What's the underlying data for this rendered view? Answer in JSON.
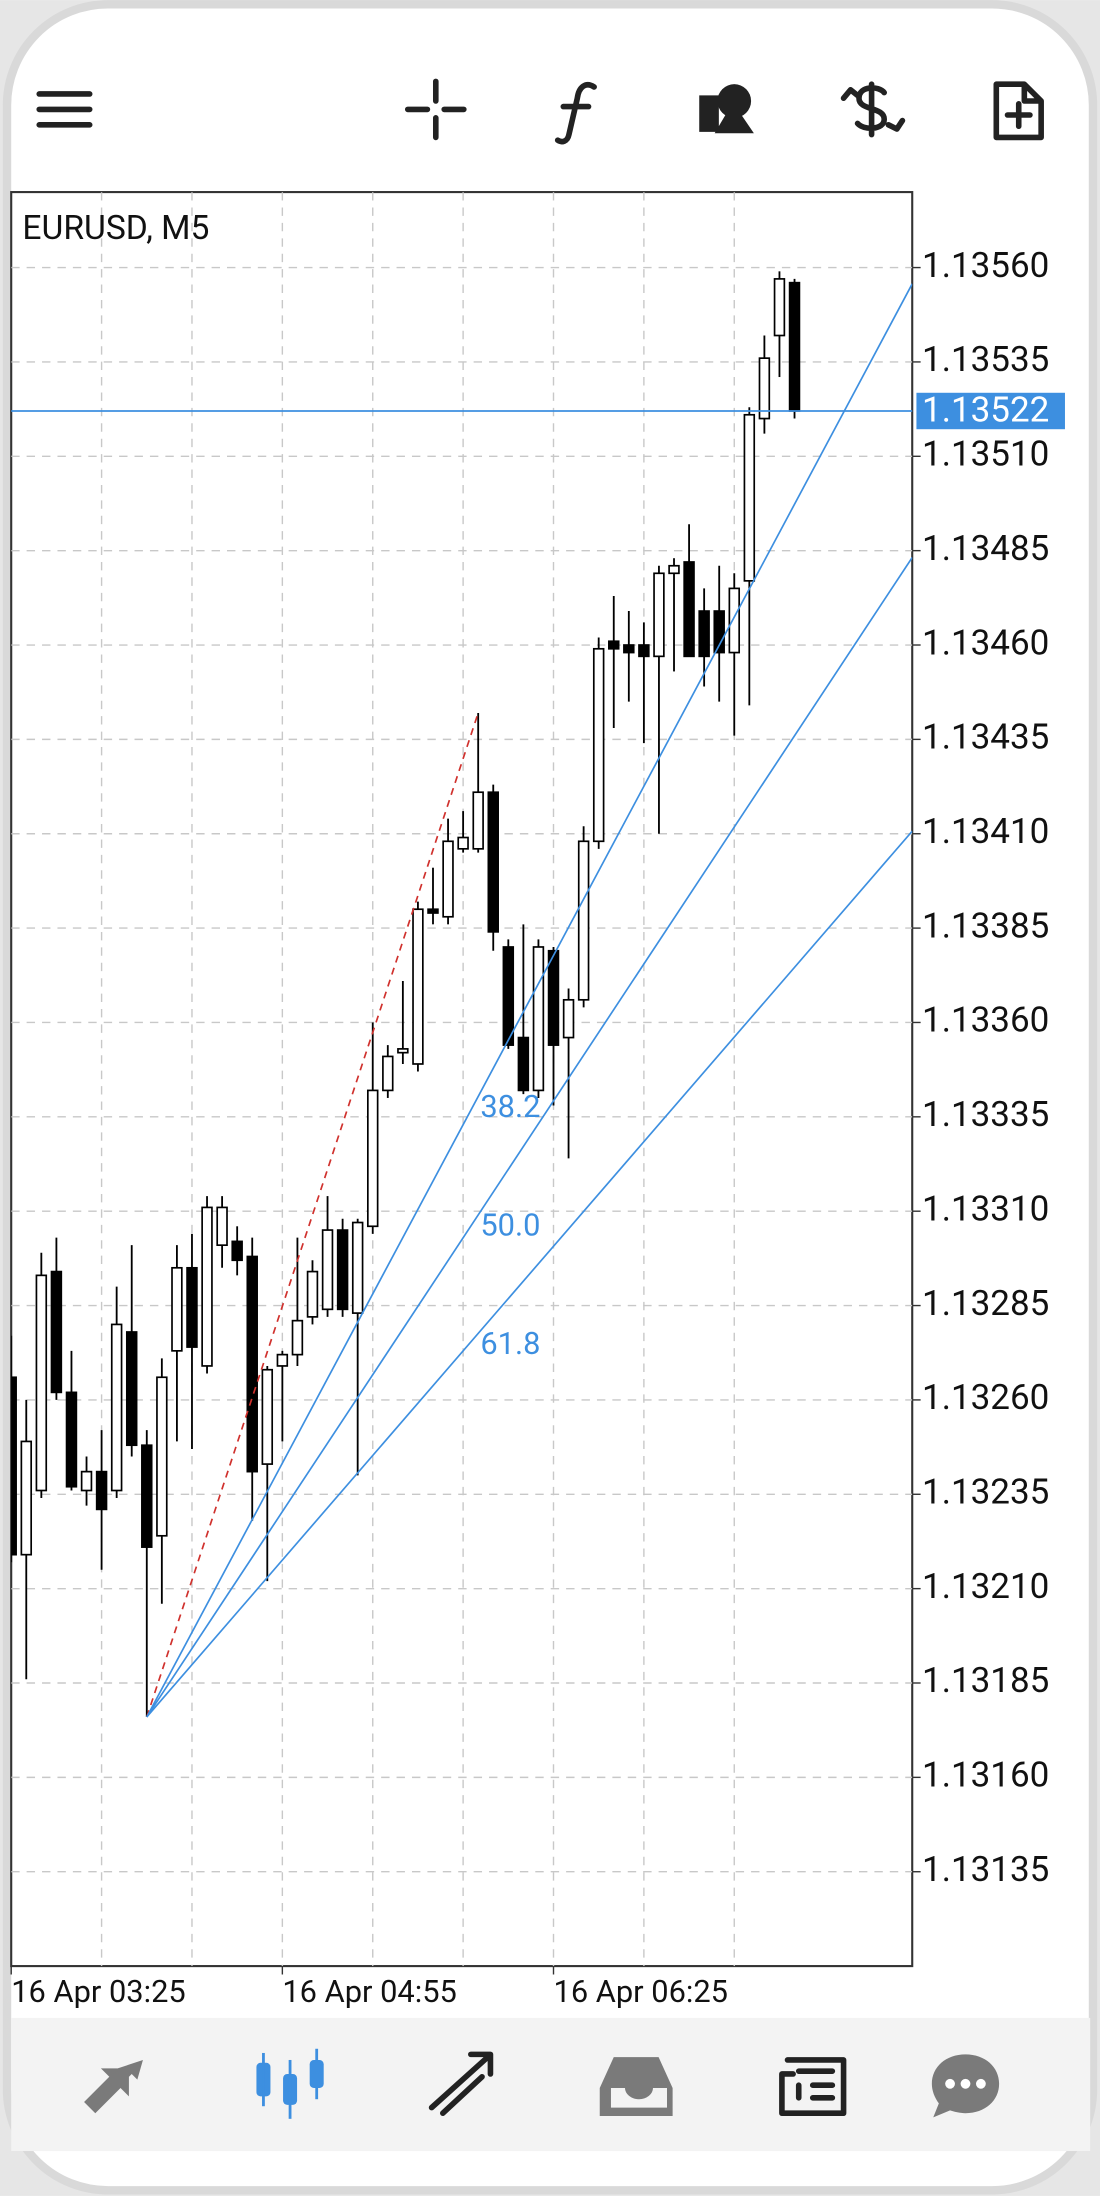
{
  "chart_data": {
    "type": "candlestick",
    "title": "EURUSD, M5",
    "categories": [
      "16 Apr 03:25",
      null,
      null,
      null,
      null,
      null,
      null,
      null,
      null,
      null,
      null,
      null,
      null,
      null,
      null,
      null,
      null,
      null,
      "16 Apr 04:55",
      null,
      null,
      null,
      null,
      null,
      null,
      null,
      null,
      null,
      null,
      null,
      null,
      null,
      null,
      null,
      null,
      null,
      "16 Apr 06:25",
      null,
      null,
      null,
      null,
      null,
      null,
      null,
      null,
      null,
      null,
      null,
      null,
      null,
      null,
      null,
      null
    ],
    "open": [
      1.13266,
      1.13219,
      1.13236,
      1.13294,
      1.13262,
      1.13236,
      1.13241,
      1.13236,
      1.13278,
      1.13248,
      1.13224,
      1.13273,
      1.13295,
      1.13269,
      1.13301,
      1.13302,
      1.13298,
      1.13243,
      1.13269,
      1.13272,
      1.13282,
      1.13284,
      1.13305,
      1.13283,
      1.13306,
      1.13342,
      1.13352,
      1.13349,
      1.1339,
      1.13388,
      1.13406,
      1.13406,
      1.13421,
      1.1338,
      1.13356,
      1.13342,
      1.13379,
      1.13356,
      1.13366,
      1.13408,
      1.13461,
      1.1346,
      1.1346,
      1.13457,
      1.13479,
      1.13482,
      1.13469,
      1.13469,
      1.13458,
      1.13477,
      1.1352,
      1.13542,
      1.13556
    ],
    "high": [
      1.13277,
      1.1326,
      1.13299,
      1.13303,
      1.13273,
      1.13245,
      1.13252,
      1.1329,
      1.13301,
      1.13252,
      1.13271,
      1.13301,
      1.13304,
      1.13314,
      1.13314,
      1.13306,
      1.13303,
      1.13269,
      1.13273,
      1.13303,
      1.13297,
      1.13314,
      1.13308,
      1.13308,
      1.1336,
      1.13354,
      1.13371,
      1.13392,
      1.13401,
      1.13414,
      1.13416,
      1.13442,
      1.13423,
      1.13382,
      1.13386,
      1.13382,
      1.1338,
      1.13369,
      1.13412,
      1.13462,
      1.13473,
      1.13469,
      1.13466,
      1.13481,
      1.13483,
      1.13492,
      1.13475,
      1.13481,
      1.13479,
      1.13523,
      1.13542,
      1.13559,
      1.13557
    ],
    "low": [
      1.13217,
      1.13186,
      1.13234,
      1.1326,
      1.13236,
      1.13232,
      1.13215,
      1.13234,
      1.13245,
      1.13176,
      1.13206,
      1.13249,
      1.13247,
      1.13267,
      1.13295,
      1.13293,
      1.13228,
      1.13212,
      1.13249,
      1.13269,
      1.1328,
      1.13282,
      1.13282,
      1.1324,
      1.13304,
      1.1334,
      1.13349,
      1.13347,
      1.13386,
      1.13386,
      1.13405,
      1.13405,
      1.13379,
      1.13353,
      1.13341,
      1.1334,
      1.13338,
      1.13324,
      1.13364,
      1.13406,
      1.13438,
      1.13445,
      1.13434,
      1.1341,
      1.13453,
      1.13457,
      1.13449,
      1.13445,
      1.13436,
      1.13444,
      1.13516,
      1.13531,
      1.1352
    ],
    "close": [
      1.13219,
      1.13249,
      1.13293,
      1.13262,
      1.13237,
      1.13241,
      1.13231,
      1.1328,
      1.13248,
      1.13221,
      1.13266,
      1.13295,
      1.13274,
      1.13311,
      1.13311,
      1.13297,
      1.13241,
      1.13268,
      1.13272,
      1.13281,
      1.13294,
      1.13305,
      1.13284,
      1.13307,
      1.13342,
      1.13351,
      1.13353,
      1.1339,
      1.13389,
      1.13408,
      1.13409,
      1.13421,
      1.13384,
      1.13354,
      1.13342,
      1.1338,
      1.13354,
      1.13366,
      1.13408,
      1.13459,
      1.13459,
      1.13458,
      1.13457,
      1.13479,
      1.13481,
      1.13457,
      1.13457,
      1.13458,
      1.13475,
      1.13521,
      1.13536,
      1.13557,
      1.13522
    ],
    "up_color": "#ffffff",
    "down_color": "#000000",
    "ylim": [
      1.1311,
      1.1358
    ],
    "yticks": [
      {
        "value": 1.1356,
        "label": "1.13560"
      },
      1.13535,
      {
        "value": 1.1351,
        "label": "1.13510"
      },
      1.13485,
      {
        "value": 1.1346,
        "label": "1.13460"
      },
      1.13435,
      {
        "value": 1.1341,
        "label": "1.13410"
      },
      1.13385,
      {
        "value": 1.1336,
        "label": "1.13360"
      },
      1.13335,
      {
        "value": 1.1331,
        "label": "1.13310"
      },
      1.13285,
      {
        "value": 1.1326,
        "label": "1.13260"
      },
      1.13235,
      {
        "value": 1.1321,
        "label": "1.13210"
      },
      1.13185,
      {
        "value": 1.1316,
        "label": "1.13160"
      },
      1.13135
    ],
    "grid": true,
    "current_price": 1.13522,
    "current_price_color": "#3d8fe0",
    "fan": {
      "start_index": 9,
      "start": 1.13176,
      "end_index": 31,
      "end": 1.13442,
      "color": "#3d8fe0",
      "trend_color": "#d0312d",
      "levels": [
        38.2,
        {
          "value": 50,
          "label": "50.0"
        },
        61.8
      ]
    }
  }
}
